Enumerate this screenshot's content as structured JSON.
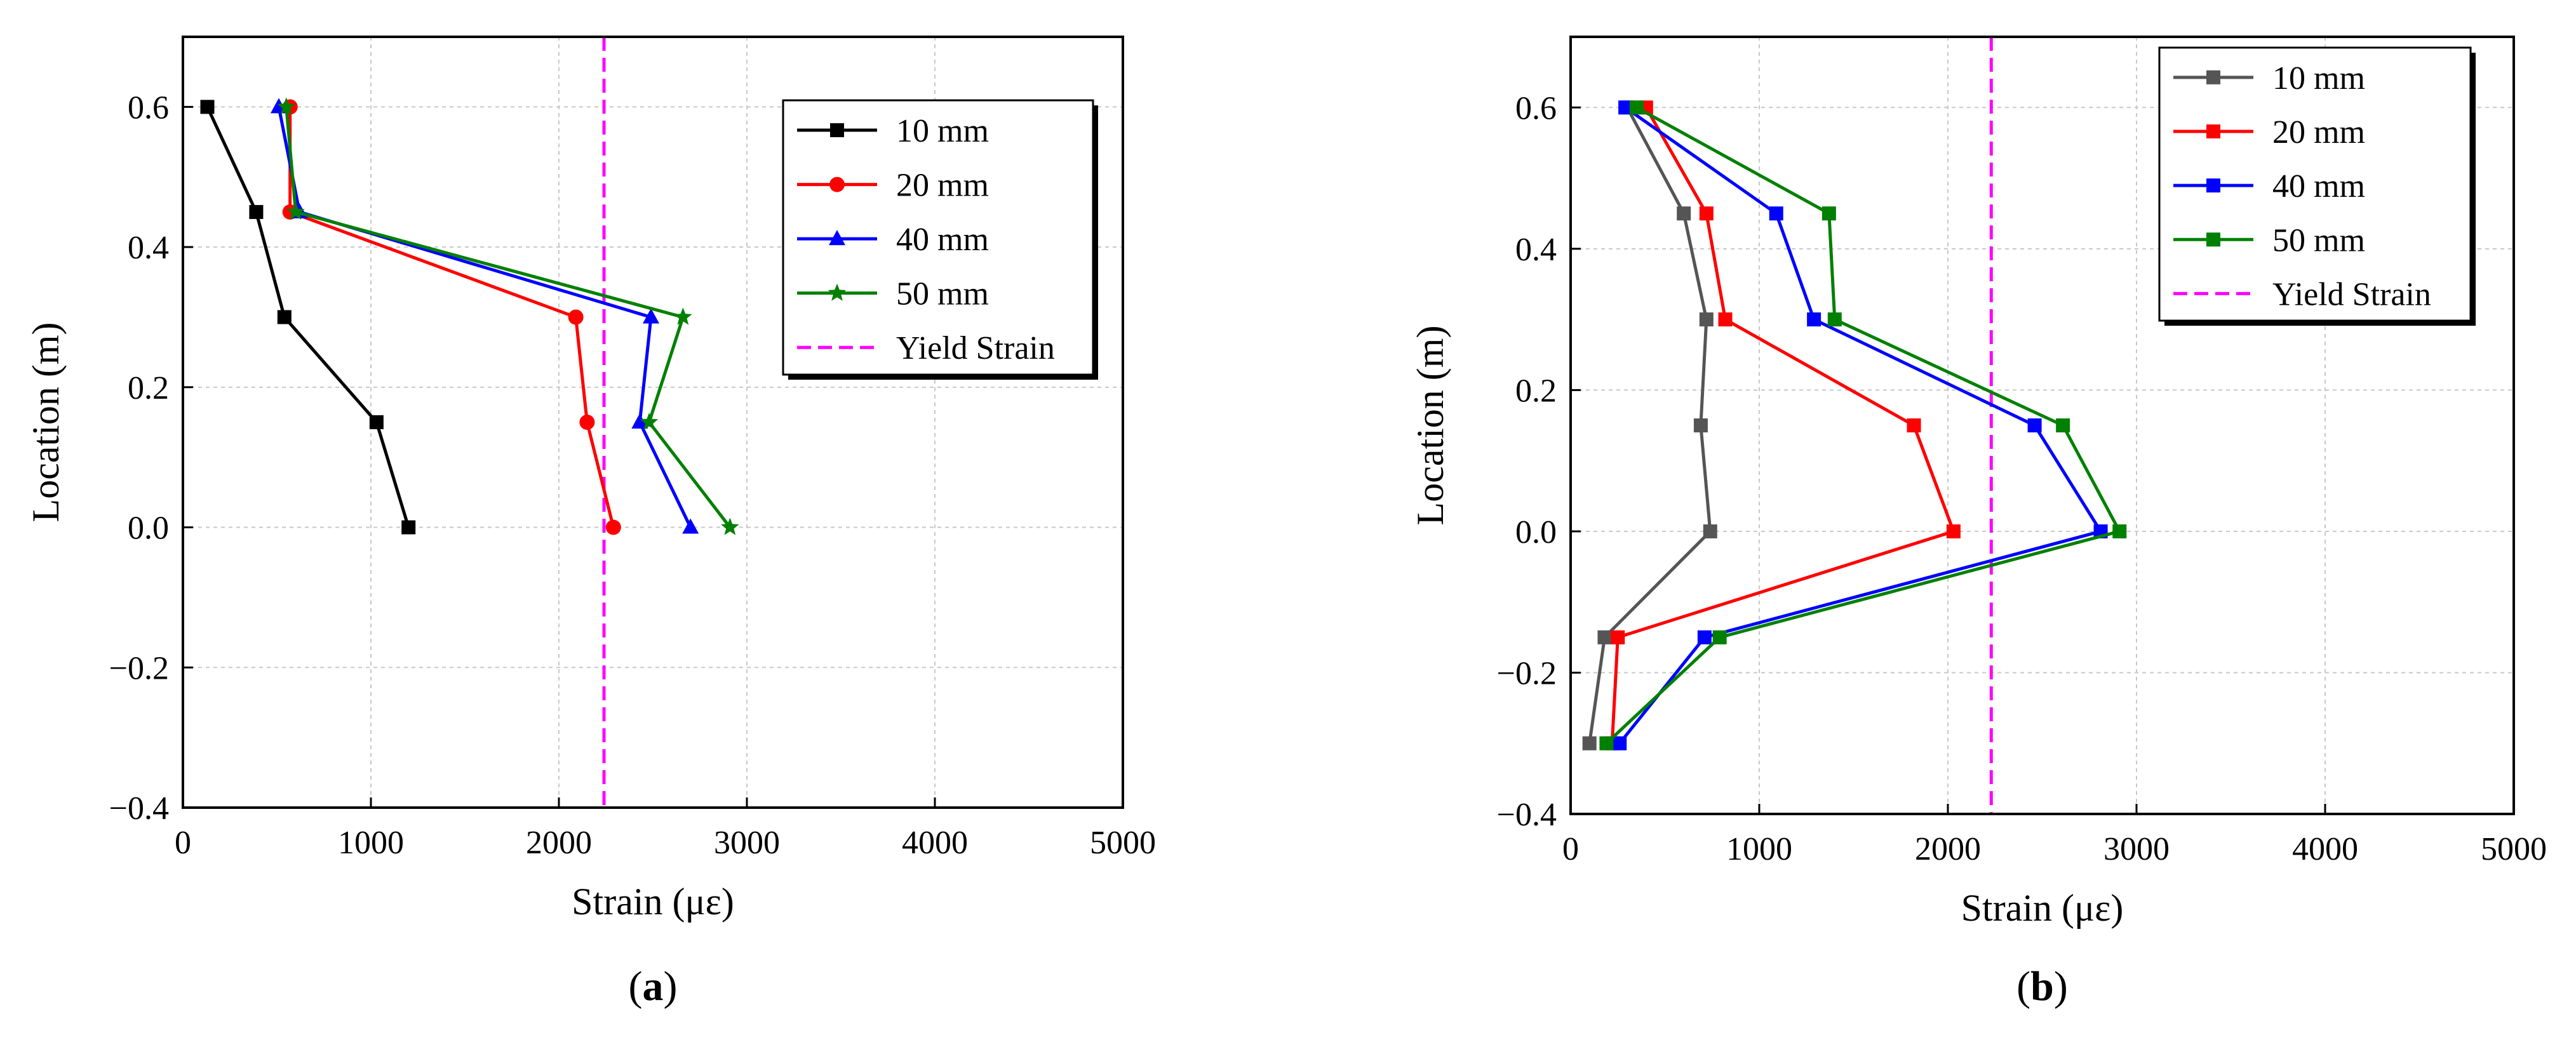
{
  "chart_data": [
    {
      "type": "line",
      "panel_label_prefix": "(",
      "panel_label": "a",
      "panel_label_suffix": ")",
      "xlabel": "Strain (με)",
      "ylabel": "Location (m)",
      "xlim": [
        0,
        5000
      ],
      "ylim": [
        -0.4,
        0.7
      ],
      "xticks": [
        0,
        1000,
        2000,
        3000,
        4000,
        5000
      ],
      "yticks": [
        -0.4,
        -0.2,
        0.0,
        0.2,
        0.4,
        0.6
      ],
      "xtick_labels": [
        "0",
        "1000",
        "2000",
        "3000",
        "4000",
        "5000"
      ],
      "ytick_labels": [
        "−0.4",
        "−0.2",
        "0.0",
        "0.2",
        "0.4",
        "0.6"
      ],
      "grid": true,
      "legend_position": "top-right",
      "series": [
        {
          "name": "10 mm",
          "color": "#000000",
          "marker": "square",
          "points": [
            [
              130,
              0.6
            ],
            [
              390,
              0.45
            ],
            [
              540,
              0.3
            ],
            [
              1030,
              0.15
            ],
            [
              1200,
              0.0
            ]
          ]
        },
        {
          "name": "20 mm",
          "color": "#ff0000",
          "marker": "circle",
          "points": [
            [
              570,
              0.6
            ],
            [
              570,
              0.45
            ],
            [
              2090,
              0.3
            ],
            [
              2150,
              0.15
            ],
            [
              2290,
              0.0
            ]
          ]
        },
        {
          "name": "40 mm",
          "color": "#0000ff",
          "marker": "triangle",
          "points": [
            [
              510,
              0.6
            ],
            [
              620,
              0.45
            ],
            [
              2490,
              0.3
            ],
            [
              2430,
              0.15
            ],
            [
              2700,
              0.0
            ]
          ]
        },
        {
          "name": "50 mm",
          "color": "#008000",
          "marker": "star",
          "points": [
            [
              550,
              0.6
            ],
            [
              600,
              0.45
            ],
            [
              2660,
              0.3
            ],
            [
              2480,
              0.15
            ],
            [
              2910,
              0.0
            ]
          ]
        }
      ],
      "reference_line": {
        "name": "Yield Strain",
        "x": 2240,
        "color": "#ff00ff"
      }
    },
    {
      "type": "line",
      "panel_label_prefix": "(",
      "panel_label": "b",
      "panel_label_suffix": ")",
      "xlabel": "Strain (με)",
      "ylabel": "Location (m)",
      "xlim": [
        0,
        5000
      ],
      "ylim": [
        -0.4,
        0.7
      ],
      "xticks": [
        0,
        1000,
        2000,
        3000,
        4000,
        5000
      ],
      "yticks": [
        -0.4,
        -0.2,
        0.0,
        0.2,
        0.4,
        0.6
      ],
      "xtick_labels": [
        "0",
        "1000",
        "2000",
        "3000",
        "4000",
        "5000"
      ],
      "ytick_labels": [
        "−0.4",
        "−0.2",
        "0.0",
        "0.2",
        "0.4",
        "0.6"
      ],
      "grid": true,
      "legend_position": "top-right",
      "series": [
        {
          "name": "10 mm",
          "color": "#555555",
          "marker": "square",
          "points": [
            [
              300,
              0.6
            ],
            [
              600,
              0.45
            ],
            [
              720,
              0.3
            ],
            [
              690,
              0.15
            ],
            [
              740,
              0.0
            ],
            [
              180,
              -0.15
            ],
            [
              100,
              -0.3
            ]
          ]
        },
        {
          "name": "20 mm",
          "color": "#ff0000",
          "marker": "square",
          "points": [
            [
              400,
              0.6
            ],
            [
              720,
              0.45
            ],
            [
              820,
              0.3
            ],
            [
              1820,
              0.15
            ],
            [
              2030,
              0.0
            ],
            [
              250,
              -0.15
            ],
            [
              220,
              -0.3
            ]
          ]
        },
        {
          "name": "40 mm",
          "color": "#0000ff",
          "marker": "square",
          "points": [
            [
              290,
              0.6
            ],
            [
              1090,
              0.45
            ],
            [
              1290,
              0.3
            ],
            [
              2460,
              0.15
            ],
            [
              2810,
              0.0
            ],
            [
              710,
              -0.15
            ],
            [
              260,
              -0.3
            ]
          ]
        },
        {
          "name": "50 mm",
          "color": "#008000",
          "marker": "square",
          "points": [
            [
              350,
              0.6
            ],
            [
              1370,
              0.45
            ],
            [
              1400,
              0.3
            ],
            [
              2610,
              0.15
            ],
            [
              2910,
              0.0
            ],
            [
              790,
              -0.15
            ],
            [
              190,
              -0.3
            ]
          ]
        }
      ],
      "reference_line": {
        "name": "Yield Strain",
        "x": 2230,
        "color": "#ff00ff"
      }
    }
  ]
}
